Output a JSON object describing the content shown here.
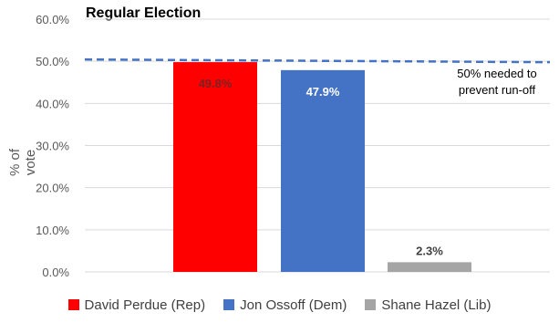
{
  "chart_data": {
    "type": "bar",
    "title": "Regular Election",
    "ylabel": "% of vote",
    "xlabel": "",
    "ylim": [
      0,
      60
    ],
    "yticks": [
      "0.0%",
      "10.0%",
      "20.0%",
      "30.0%",
      "40.0%",
      "50.0%",
      "60.0%"
    ],
    "categories": [
      "David Perdue (Rep)",
      "Jon Ossoff (Dem)",
      "Shane Hazel (Lib)"
    ],
    "values": [
      49.8,
      47.9,
      2.3
    ],
    "data_labels": [
      "49.8%",
      "47.9%",
      "2.3%"
    ],
    "colors": [
      "#ff0000",
      "#4472c4",
      "#a5a5a5"
    ],
    "reference_line": {
      "value": 50,
      "style": "dashed",
      "color": "#4472c4"
    },
    "annotation": "50% needed to prevent run-off",
    "grid": true,
    "legend_position": "bottom"
  }
}
